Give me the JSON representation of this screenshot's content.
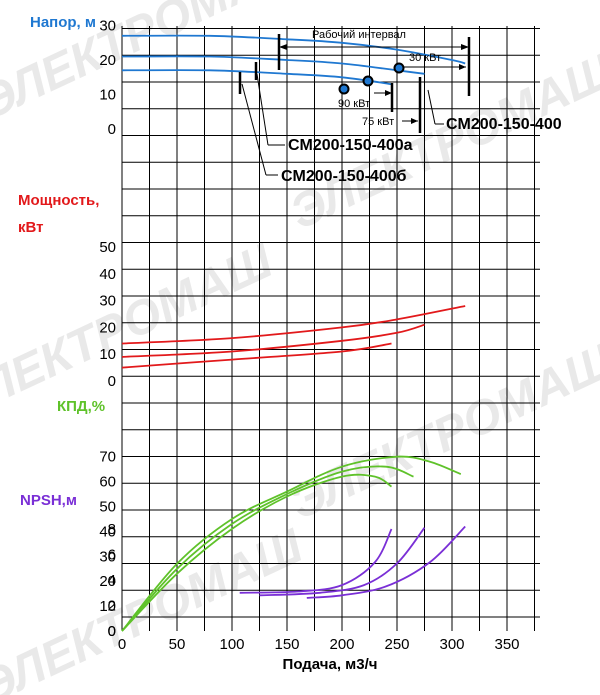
{
  "colors": {
    "head": "#1f78d1",
    "power": "#e2191b",
    "eff": "#5fc22a",
    "npsh": "#7a2fd6"
  },
  "watermark": "ЭЛЕКТРОМАШ",
  "chart_data": [
    {
      "type": "line",
      "title": "Напор, м",
      "xlabel": "Подача, м3/ч",
      "xlim": [
        0,
        375
      ],
      "x_ticks": [
        "0",
        "50",
        "100",
        "150",
        "200",
        "250",
        "300",
        "350"
      ],
      "ylim": [
        0,
        30
      ],
      "y_ticks": [
        "0",
        "10",
        "20",
        "30"
      ],
      "series": [
        {
          "name": "CM200-150-400",
          "x": [
            0,
            80,
            150,
            200,
            250,
            300,
            312
          ],
          "y": [
            27,
            27,
            26,
            25,
            23,
            20,
            19
          ]
        },
        {
          "name": "CM200-150-400a",
          "x": [
            0,
            80,
            150,
            200,
            250,
            275
          ],
          "y": [
            21,
            21,
            20,
            19,
            17,
            16
          ]
        },
        {
          "name": "CM200-150-400б",
          "x": [
            0,
            80,
            150,
            200,
            245
          ],
          "y": [
            17,
            17,
            16,
            15,
            13
          ]
        }
      ],
      "annotations": {
        "working_range": "Рабочий интервал",
        "power_30": "30 кВт",
        "power_90": "90 кВт",
        "power_75": "75 кВт",
        "model_400": "CM200-150-400",
        "model_400a": "CM200-150-400a",
        "model_400b": "CM200-150-400б"
      }
    },
    {
      "type": "line",
      "title": "Мощность, кВт",
      "ylim": [
        0,
        50
      ],
      "y_ticks": [
        "0",
        "10",
        "20",
        "30",
        "40",
        "50"
      ],
      "series": [
        {
          "name": "CM200-150-400",
          "x": [
            0,
            100,
            200,
            250,
            312
          ],
          "y": [
            14,
            16,
            20,
            23,
            28
          ]
        },
        {
          "name": "CM200-150-400a",
          "x": [
            0,
            100,
            200,
            250,
            275
          ],
          "y": [
            9,
            11,
            15,
            18,
            21
          ]
        },
        {
          "name": "CM200-150-400б",
          "x": [
            0,
            100,
            200,
            245
          ],
          "y": [
            5,
            8,
            11,
            14
          ]
        }
      ]
    },
    {
      "type": "line",
      "title": "КПД,%",
      "ylim": [
        0,
        70
      ],
      "y_ticks": [
        "0",
        "10",
        "20",
        "30",
        "40",
        "50",
        "60",
        "70"
      ],
      "series": [
        {
          "name": "CM200-150-400",
          "x": [
            0,
            50,
            100,
            150,
            200,
            250,
            280,
            308
          ],
          "y": [
            0,
            27,
            45,
            56,
            66,
            70,
            68,
            63
          ]
        },
        {
          "name": "CM200-150-400a",
          "x": [
            0,
            50,
            100,
            150,
            200,
            240,
            265
          ],
          "y": [
            0,
            25,
            43,
            55,
            64,
            66,
            62
          ]
        },
        {
          "name": "CM200-150-400б",
          "x": [
            0,
            50,
            100,
            150,
            200,
            230,
            245
          ],
          "y": [
            0,
            23,
            41,
            54,
            62,
            62,
            58
          ]
        }
      ]
    },
    {
      "type": "line",
      "title": "NPSH,м",
      "ylim": [
        0,
        9
      ],
      "y_ticks": [
        "0",
        "2",
        "4",
        "6",
        "8"
      ],
      "series": [
        {
          "name": "CM200-150-400",
          "x": [
            168,
            200,
            240,
            280,
            312
          ],
          "y": [
            2.6,
            2.8,
            3.5,
            5.4,
            8.2
          ]
        },
        {
          "name": "CM200-150-400a",
          "x": [
            125,
            180,
            220,
            250,
            275
          ],
          "y": [
            2.8,
            3.0,
            3.6,
            5.3,
            8.1
          ]
        },
        {
          "name": "CM200-150-400б",
          "x": [
            107,
            160,
            200,
            230,
            245
          ],
          "y": [
            3.0,
            3.1,
            3.6,
            5.4,
            8.0
          ]
        }
      ]
    }
  ]
}
